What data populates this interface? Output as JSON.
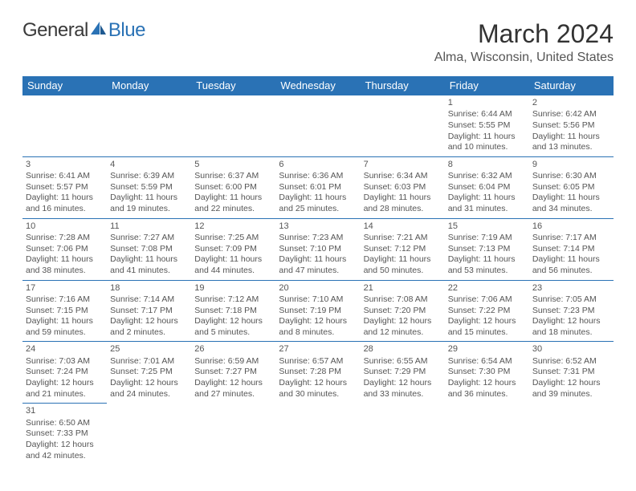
{
  "logo": {
    "text1": "General",
    "text2": "Blue"
  },
  "title": "March 2024",
  "location": "Alma, Wisconsin, United States",
  "headers": [
    "Sunday",
    "Monday",
    "Tuesday",
    "Wednesday",
    "Thursday",
    "Friday",
    "Saturday"
  ],
  "colors": {
    "header_bg": "#2a72b5",
    "header_fg": "#ffffff",
    "border": "#2a72b5",
    "text": "#555555",
    "title": "#333333",
    "bg": "#ffffff"
  },
  "fonts": {
    "title_size": 32,
    "location_size": 16,
    "header_size": 13,
    "cell_size": 10.5,
    "logo_size": 24
  },
  "weeks": [
    [
      null,
      null,
      null,
      null,
      null,
      {
        "n": "1",
        "sr": "Sunrise: 6:44 AM",
        "ss": "Sunset: 5:55 PM",
        "d1": "Daylight: 11 hours",
        "d2": "and 10 minutes."
      },
      {
        "n": "2",
        "sr": "Sunrise: 6:42 AM",
        "ss": "Sunset: 5:56 PM",
        "d1": "Daylight: 11 hours",
        "d2": "and 13 minutes."
      }
    ],
    [
      {
        "n": "3",
        "sr": "Sunrise: 6:41 AM",
        "ss": "Sunset: 5:57 PM",
        "d1": "Daylight: 11 hours",
        "d2": "and 16 minutes."
      },
      {
        "n": "4",
        "sr": "Sunrise: 6:39 AM",
        "ss": "Sunset: 5:59 PM",
        "d1": "Daylight: 11 hours",
        "d2": "and 19 minutes."
      },
      {
        "n": "5",
        "sr": "Sunrise: 6:37 AM",
        "ss": "Sunset: 6:00 PM",
        "d1": "Daylight: 11 hours",
        "d2": "and 22 minutes."
      },
      {
        "n": "6",
        "sr": "Sunrise: 6:36 AM",
        "ss": "Sunset: 6:01 PM",
        "d1": "Daylight: 11 hours",
        "d2": "and 25 minutes."
      },
      {
        "n": "7",
        "sr": "Sunrise: 6:34 AM",
        "ss": "Sunset: 6:03 PM",
        "d1": "Daylight: 11 hours",
        "d2": "and 28 minutes."
      },
      {
        "n": "8",
        "sr": "Sunrise: 6:32 AM",
        "ss": "Sunset: 6:04 PM",
        "d1": "Daylight: 11 hours",
        "d2": "and 31 minutes."
      },
      {
        "n": "9",
        "sr": "Sunrise: 6:30 AM",
        "ss": "Sunset: 6:05 PM",
        "d1": "Daylight: 11 hours",
        "d2": "and 34 minutes."
      }
    ],
    [
      {
        "n": "10",
        "sr": "Sunrise: 7:28 AM",
        "ss": "Sunset: 7:06 PM",
        "d1": "Daylight: 11 hours",
        "d2": "and 38 minutes."
      },
      {
        "n": "11",
        "sr": "Sunrise: 7:27 AM",
        "ss": "Sunset: 7:08 PM",
        "d1": "Daylight: 11 hours",
        "d2": "and 41 minutes."
      },
      {
        "n": "12",
        "sr": "Sunrise: 7:25 AM",
        "ss": "Sunset: 7:09 PM",
        "d1": "Daylight: 11 hours",
        "d2": "and 44 minutes."
      },
      {
        "n": "13",
        "sr": "Sunrise: 7:23 AM",
        "ss": "Sunset: 7:10 PM",
        "d1": "Daylight: 11 hours",
        "d2": "and 47 minutes."
      },
      {
        "n": "14",
        "sr": "Sunrise: 7:21 AM",
        "ss": "Sunset: 7:12 PM",
        "d1": "Daylight: 11 hours",
        "d2": "and 50 minutes."
      },
      {
        "n": "15",
        "sr": "Sunrise: 7:19 AM",
        "ss": "Sunset: 7:13 PM",
        "d1": "Daylight: 11 hours",
        "d2": "and 53 minutes."
      },
      {
        "n": "16",
        "sr": "Sunrise: 7:17 AM",
        "ss": "Sunset: 7:14 PM",
        "d1": "Daylight: 11 hours",
        "d2": "and 56 minutes."
      }
    ],
    [
      {
        "n": "17",
        "sr": "Sunrise: 7:16 AM",
        "ss": "Sunset: 7:15 PM",
        "d1": "Daylight: 11 hours",
        "d2": "and 59 minutes."
      },
      {
        "n": "18",
        "sr": "Sunrise: 7:14 AM",
        "ss": "Sunset: 7:17 PM",
        "d1": "Daylight: 12 hours",
        "d2": "and 2 minutes."
      },
      {
        "n": "19",
        "sr": "Sunrise: 7:12 AM",
        "ss": "Sunset: 7:18 PM",
        "d1": "Daylight: 12 hours",
        "d2": "and 5 minutes."
      },
      {
        "n": "20",
        "sr": "Sunrise: 7:10 AM",
        "ss": "Sunset: 7:19 PM",
        "d1": "Daylight: 12 hours",
        "d2": "and 8 minutes."
      },
      {
        "n": "21",
        "sr": "Sunrise: 7:08 AM",
        "ss": "Sunset: 7:20 PM",
        "d1": "Daylight: 12 hours",
        "d2": "and 12 minutes."
      },
      {
        "n": "22",
        "sr": "Sunrise: 7:06 AM",
        "ss": "Sunset: 7:22 PM",
        "d1": "Daylight: 12 hours",
        "d2": "and 15 minutes."
      },
      {
        "n": "23",
        "sr": "Sunrise: 7:05 AM",
        "ss": "Sunset: 7:23 PM",
        "d1": "Daylight: 12 hours",
        "d2": "and 18 minutes."
      }
    ],
    [
      {
        "n": "24",
        "sr": "Sunrise: 7:03 AM",
        "ss": "Sunset: 7:24 PM",
        "d1": "Daylight: 12 hours",
        "d2": "and 21 minutes."
      },
      {
        "n": "25",
        "sr": "Sunrise: 7:01 AM",
        "ss": "Sunset: 7:25 PM",
        "d1": "Daylight: 12 hours",
        "d2": "and 24 minutes."
      },
      {
        "n": "26",
        "sr": "Sunrise: 6:59 AM",
        "ss": "Sunset: 7:27 PM",
        "d1": "Daylight: 12 hours",
        "d2": "and 27 minutes."
      },
      {
        "n": "27",
        "sr": "Sunrise: 6:57 AM",
        "ss": "Sunset: 7:28 PM",
        "d1": "Daylight: 12 hours",
        "d2": "and 30 minutes."
      },
      {
        "n": "28",
        "sr": "Sunrise: 6:55 AM",
        "ss": "Sunset: 7:29 PM",
        "d1": "Daylight: 12 hours",
        "d2": "and 33 minutes."
      },
      {
        "n": "29",
        "sr": "Sunrise: 6:54 AM",
        "ss": "Sunset: 7:30 PM",
        "d1": "Daylight: 12 hours",
        "d2": "and 36 minutes."
      },
      {
        "n": "30",
        "sr": "Sunrise: 6:52 AM",
        "ss": "Sunset: 7:31 PM",
        "d1": "Daylight: 12 hours",
        "d2": "and 39 minutes."
      }
    ],
    [
      {
        "n": "31",
        "sr": "Sunrise: 6:50 AM",
        "ss": "Sunset: 7:33 PM",
        "d1": "Daylight: 12 hours",
        "d2": "and 42 minutes."
      },
      null,
      null,
      null,
      null,
      null,
      null
    ]
  ]
}
